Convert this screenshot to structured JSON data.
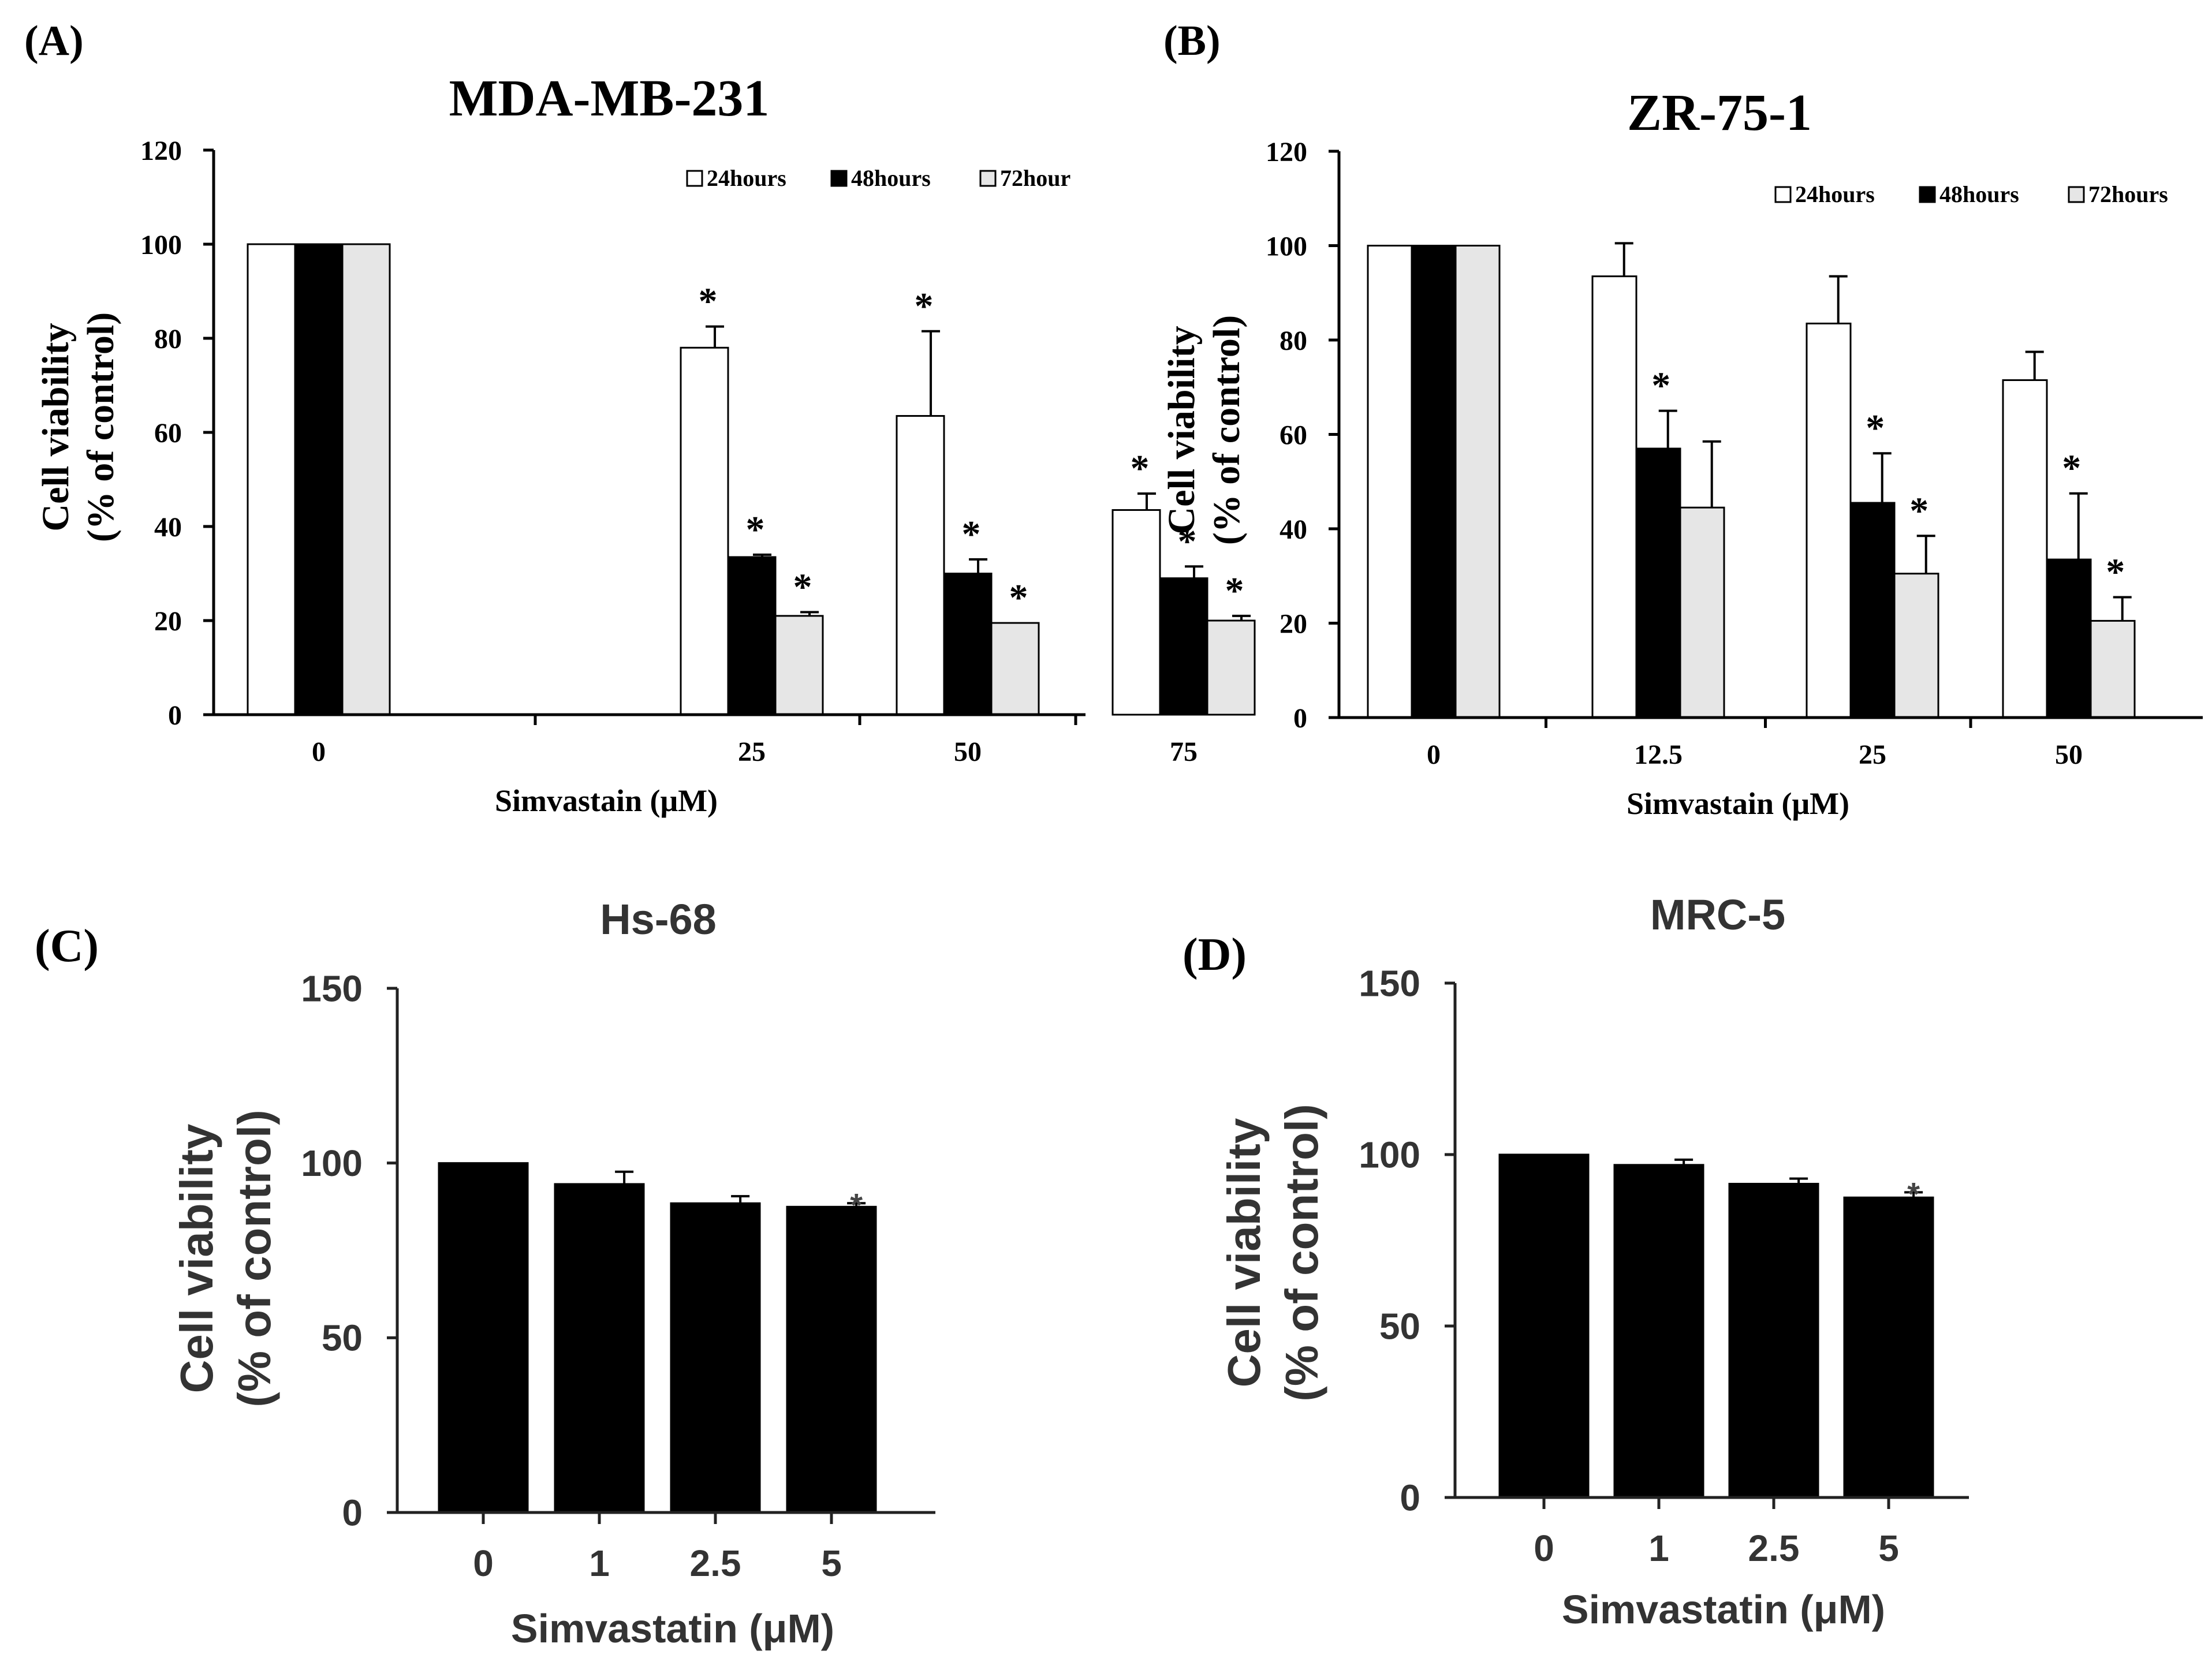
{
  "chart_data": [
    {
      "panel_label": "(A)",
      "type": "bar",
      "title": "MDA-MB-231",
      "xlabel": "Simvastain (μM)",
      "ylabel_line1": "Cell viability",
      "ylabel_line2": "(% of control)",
      "ylim": [
        0,
        120
      ],
      "yticks": [
        "0",
        "20",
        "40",
        "60",
        "80",
        "100",
        "120"
      ],
      "categories": [
        "0",
        "25",
        "50",
        "75"
      ],
      "legend_position": "top-right",
      "series": [
        {
          "name": "24hours",
          "color": "#ffffff",
          "values": [
            100,
            78,
            63.5,
            43.5
          ],
          "errors": [
            0,
            4.5,
            18,
            3.5
          ],
          "significant": [
            false,
            true,
            true,
            true
          ]
        },
        {
          "name": "48hours",
          "color": "#000000",
          "values": [
            100,
            33.5,
            30,
            29
          ],
          "errors": [
            0,
            0.5,
            3,
            2.5
          ],
          "significant": [
            false,
            true,
            true,
            true
          ]
        },
        {
          "name": "72hour",
          "color": "#e6e6e6",
          "values": [
            100,
            21,
            19.5,
            20
          ],
          "errors": [
            0,
            0.8,
            0,
            1
          ],
          "significant": [
            false,
            true,
            true,
            true
          ]
        }
      ],
      "star_symbol": "*"
    },
    {
      "panel_label": "(B)",
      "type": "bar",
      "title": "ZR-75-1",
      "xlabel": "Simvastain (μM)",
      "ylabel_line1": "Cell viability",
      "ylabel_line2": "(% of control)",
      "ylim": [
        0,
        120
      ],
      "yticks": [
        "0",
        "20",
        "40",
        "60",
        "80",
        "100",
        "120"
      ],
      "categories": [
        "0",
        "12.5",
        "25",
        "50"
      ],
      "legend_position": "top-right",
      "series": [
        {
          "name": "24hours",
          "color": "#ffffff",
          "values": [
            100,
            93.5,
            83.5,
            71.5
          ],
          "errors": [
            0,
            7,
            10,
            6
          ],
          "significant": [
            false,
            false,
            false,
            false
          ]
        },
        {
          "name": "48hours",
          "color": "#000000",
          "values": [
            100,
            57,
            45.5,
            33.5
          ],
          "errors": [
            0,
            8,
            10.5,
            14
          ],
          "significant": [
            false,
            true,
            true,
            true
          ]
        },
        {
          "name": "72hours",
          "color": "#e6e6e6",
          "values": [
            100,
            44.5,
            30.5,
            20.5
          ],
          "errors": [
            0,
            14,
            8,
            5
          ],
          "significant": [
            false,
            false,
            true,
            true
          ]
        }
      ],
      "star_symbol": "*"
    },
    {
      "panel_label": "(C)",
      "type": "bar",
      "title": "Hs-68",
      "xlabel": "Simvastatin (μM)",
      "ylabel_line1": "Cell viability",
      "ylabel_line2": "(% of control)",
      "ylim": [
        0,
        150
      ],
      "yticks": [
        "0",
        "50",
        "100",
        "150"
      ],
      "categories": [
        "0",
        "1",
        "2.5",
        "5"
      ],
      "series": [
        {
          "name": "viability",
          "color": "#000000",
          "values": [
            100,
            94,
            88.5,
            87.5
          ],
          "errors": [
            0,
            3.5,
            2,
            1
          ]
        }
      ],
      "significant": [
        false,
        false,
        false,
        true
      ],
      "star_symbol": "*"
    },
    {
      "panel_label": "(D)",
      "type": "bar",
      "title": "MRC-5",
      "xlabel": "Simvastatin (μM)",
      "ylabel_line1": "Cell viability",
      "ylabel_line2": "(% of control)",
      "ylim": [
        0,
        150
      ],
      "yticks": [
        "0",
        "50",
        "100",
        "150"
      ],
      "categories": [
        "0",
        "1",
        "2.5",
        "5"
      ],
      "series": [
        {
          "name": "viability",
          "color": "#000000",
          "values": [
            100,
            97,
            91.5,
            87.5
          ],
          "errors": [
            0,
            1.5,
            1.5,
            1.5
          ]
        }
      ],
      "significant": [
        false,
        false,
        false,
        true
      ],
      "star_symbol": "*"
    }
  ]
}
